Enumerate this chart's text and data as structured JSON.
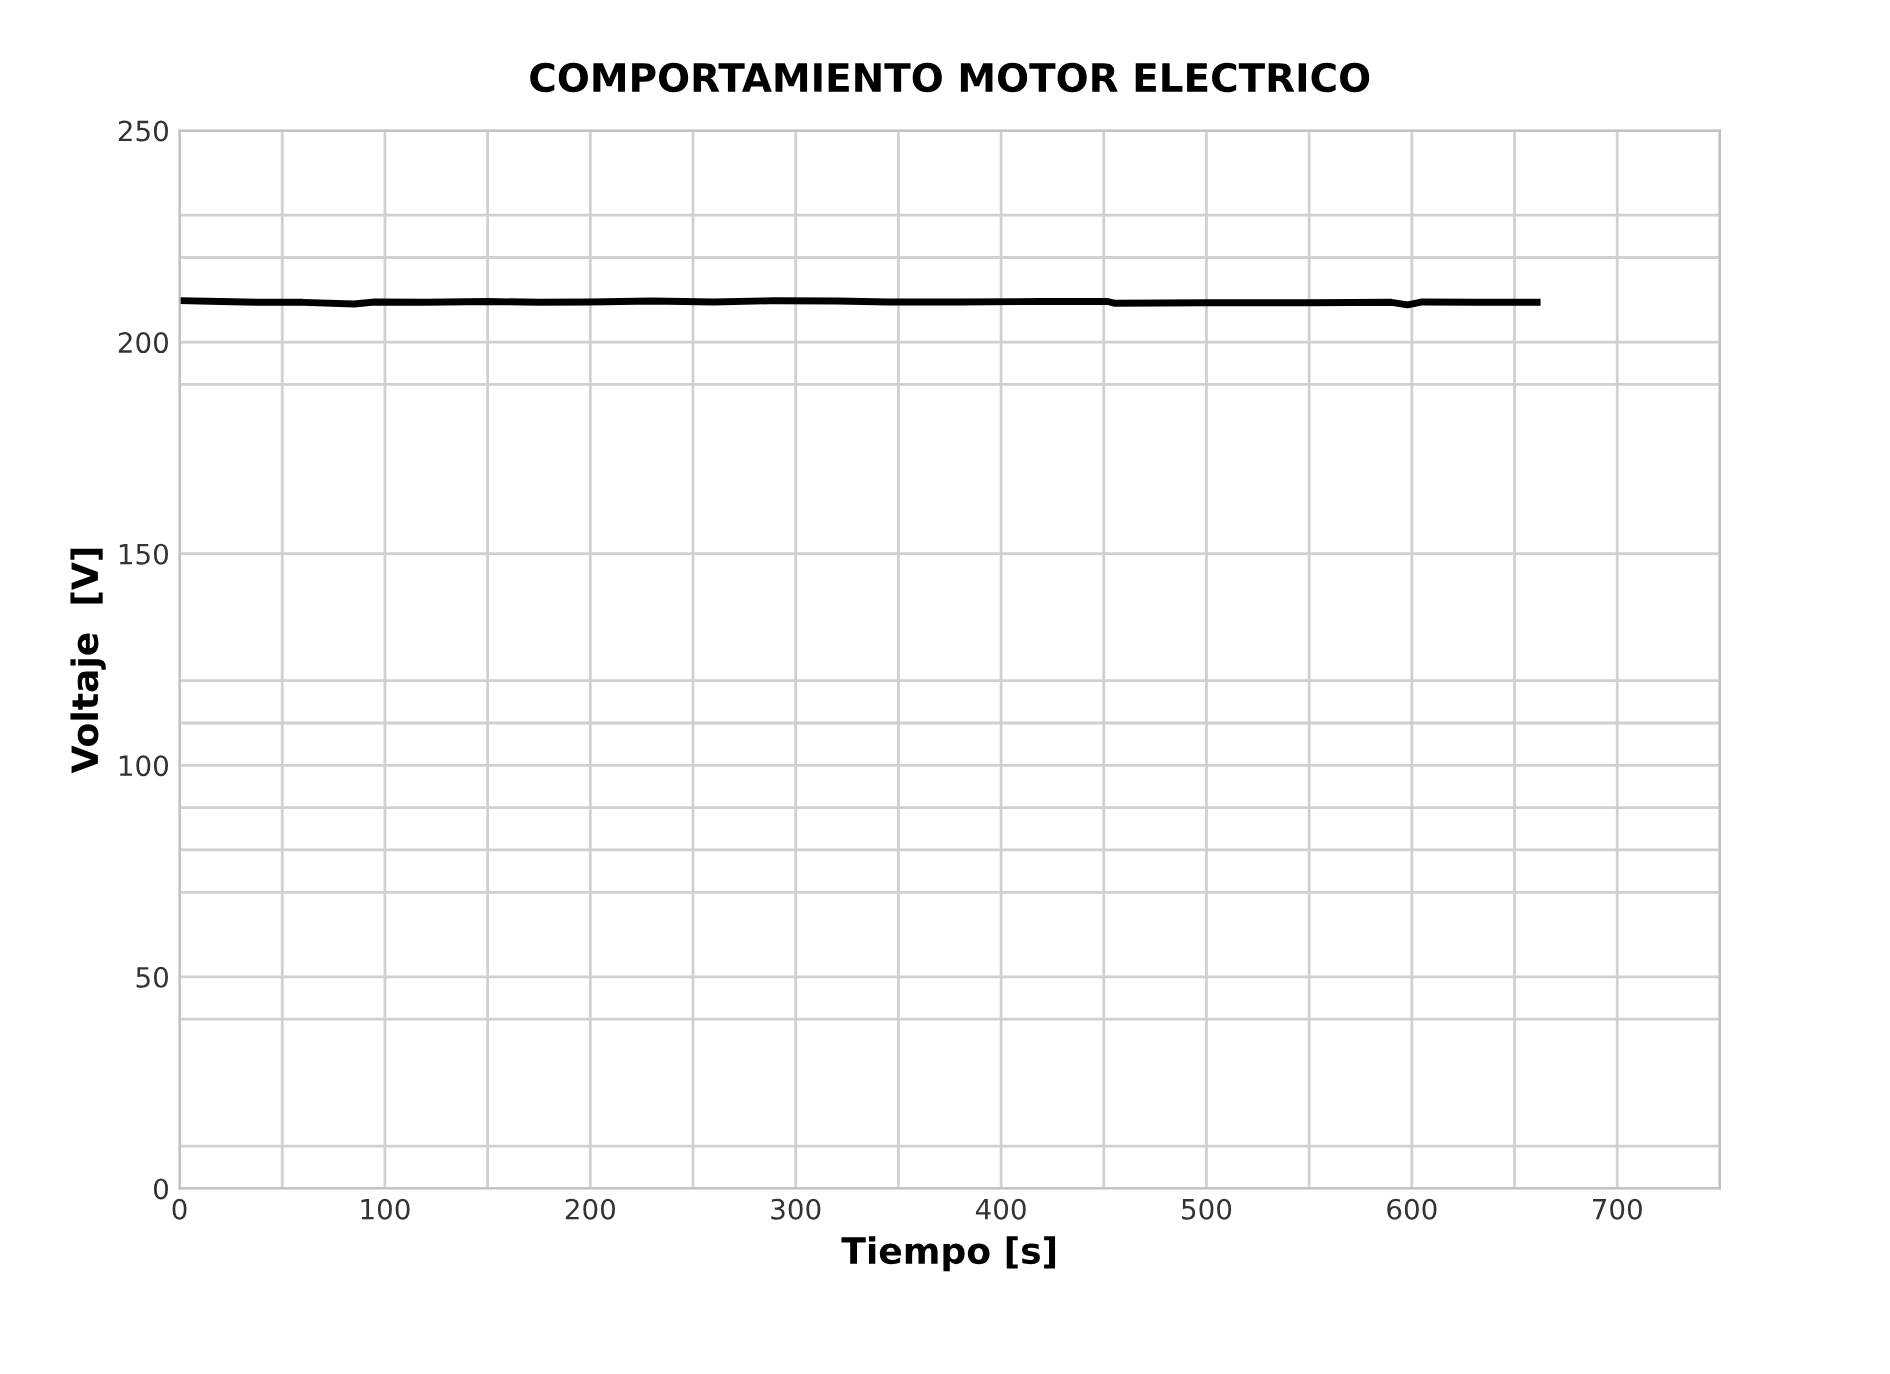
{
  "chart_data": {
    "type": "line",
    "title": "COMPORTAMIENTO MOTOR ELECTRICO",
    "xlabel": "Tiempo [s]",
    "ylabel": "Voltaje  [V]",
    "x": [
      0,
      20,
      40,
      60,
      85,
      95,
      120,
      150,
      175,
      200,
      230,
      260,
      290,
      320,
      345,
      380,
      420,
      452,
      455,
      500,
      550,
      590,
      598,
      605,
      630,
      661
    ],
    "series": [
      {
        "color": "#000000",
        "values": [
          209.8,
          209.6,
          209.4,
          209.4,
          209.0,
          209.5,
          209.4,
          209.6,
          209.4,
          209.5,
          209.7,
          209.5,
          209.8,
          209.7,
          209.5,
          209.5,
          209.6,
          209.6,
          209.2,
          209.3,
          209.3,
          209.4,
          208.8,
          209.5,
          209.4,
          209.4
        ]
      }
    ],
    "xlim": [
      0,
      750
    ],
    "ylim": [
      0,
      250
    ],
    "xticks": [
      0,
      {
        "value": 50,
        "label": null
      },
      100,
      {
        "value": 150,
        "label": null
      },
      200,
      {
        "value": 250,
        "label": null
      },
      300,
      {
        "value": 350,
        "label": null
      },
      400,
      {
        "value": 450,
        "label": null
      },
      500,
      {
        "value": 550,
        "label": null
      },
      600,
      {
        "value": 650,
        "label": null
      },
      700,
      {
        "value": 750,
        "label": null
      }
    ],
    "yticks": [
      0,
      {
        "value": 10,
        "label": null
      },
      {
        "value": 40,
        "label": null
      },
      50,
      {
        "value": 70,
        "label": null
      },
      {
        "value": 80,
        "label": null
      },
      {
        "value": 90,
        "label": null
      },
      100,
      {
        "value": 110,
        "label": null
      },
      {
        "value": 120,
        "label": null
      },
      150,
      {
        "value": 190,
        "label": null
      },
      200,
      {
        "value": 220,
        "label": null
      },
      {
        "value": 230,
        "label": null
      },
      250
    ],
    "grid": true,
    "marker": "none",
    "line_style": "solid",
    "legend": false
  }
}
